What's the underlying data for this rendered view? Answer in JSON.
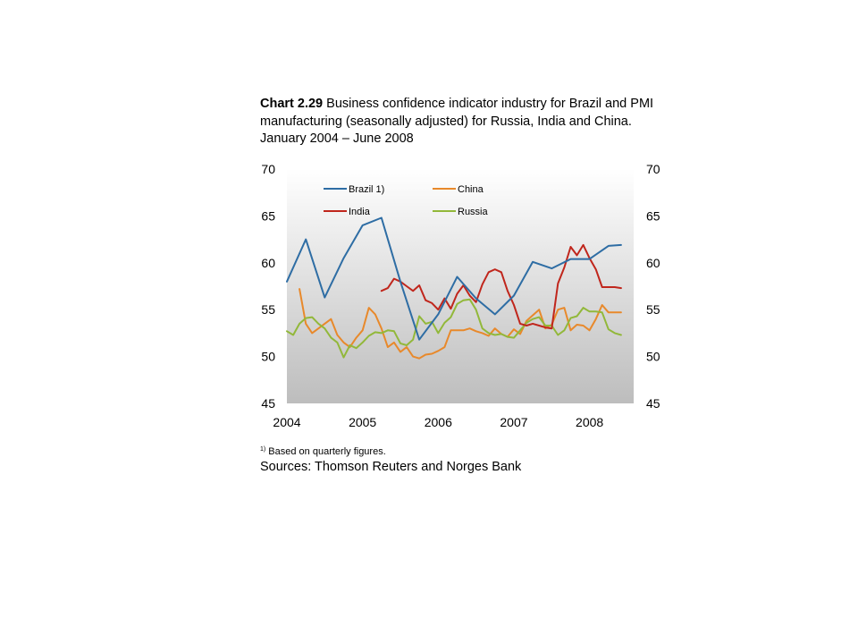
{
  "header": {
    "chart_number": "Chart 2.29",
    "title": "Business confidence indicator industry for Brazil and PMI manufacturing (seasonally adjusted) for Russia, India and China. January 2004 – June 2008"
  },
  "footnote": {
    "marker": "1)",
    "text": "Based on quarterly figures."
  },
  "sources": "Sources: Thomson Reuters and Norges Bank",
  "chart_data": {
    "type": "line",
    "title": "",
    "xlabel": "",
    "ylabel": "",
    "x_ticks": [
      "2004",
      "2005",
      "2006",
      "2007",
      "2008"
    ],
    "ylim": [
      45,
      70
    ],
    "y_ticks": [
      45,
      50,
      55,
      60,
      65,
      70
    ],
    "y_ticks_right": [
      45,
      50,
      55,
      60,
      65,
      70
    ],
    "legend_position": "top-left",
    "background": "vertical gradient from white to grey",
    "series": [
      {
        "name": "Brazil 1)",
        "color": "#2e6da4",
        "x": [
          "2004-01",
          "2004-04",
          "2004-07",
          "2004-10",
          "2005-01",
          "2005-04",
          "2005-07",
          "2005-10",
          "2006-01",
          "2006-04",
          "2006-07",
          "2006-10",
          "2007-01",
          "2007-04",
          "2007-07",
          "2007-10",
          "2008-01",
          "2008-04",
          "2008-06"
        ],
        "values": [
          58.0,
          62.5,
          56.3,
          60.5,
          64.0,
          64.8,
          58.0,
          51.8,
          54.5,
          58.5,
          56.2,
          54.5,
          56.5,
          60.1,
          59.4,
          60.4,
          60.4,
          61.8,
          61.9
        ]
      },
      {
        "name": "China",
        "color": "#e8892b",
        "x": [
          "2004-03",
          "2004-04",
          "2004-05",
          "2004-06",
          "2004-07",
          "2004-08",
          "2004-09",
          "2004-10",
          "2004-11",
          "2004-12",
          "2005-01",
          "2005-02",
          "2005-03",
          "2005-04",
          "2005-05",
          "2005-06",
          "2005-07",
          "2005-08",
          "2005-09",
          "2005-10",
          "2005-11",
          "2005-12",
          "2006-01",
          "2006-02",
          "2006-03",
          "2006-04",
          "2006-05",
          "2006-06",
          "2006-07",
          "2006-08",
          "2006-09",
          "2006-10",
          "2006-11",
          "2006-12",
          "2007-01",
          "2007-02",
          "2007-03",
          "2007-04",
          "2007-05",
          "2007-06",
          "2007-07",
          "2007-08",
          "2007-09",
          "2007-10",
          "2007-11",
          "2007-12",
          "2008-01",
          "2008-02",
          "2008-03",
          "2008-04",
          "2008-05",
          "2008-06"
        ],
        "values": [
          57.2,
          53.5,
          52.5,
          53.0,
          53.5,
          54.0,
          52.3,
          51.5,
          51.0,
          52.0,
          52.8,
          55.2,
          54.5,
          53.0,
          51.0,
          51.5,
          50.5,
          51.0,
          50.0,
          49.8,
          50.2,
          50.3,
          50.6,
          51.0,
          52.8,
          52.8,
          52.8,
          53.0,
          52.7,
          52.5,
          52.2,
          53.0,
          52.4,
          52.1,
          52.9,
          52.4,
          53.8,
          54.4,
          55.0,
          53.0,
          53.4,
          55.0,
          55.2,
          52.8,
          53.4,
          53.3,
          52.8,
          54.0,
          55.5,
          54.7,
          54.7,
          54.7
        ],
        "note": "x positions approximate; values read from chart"
      },
      {
        "name": "India",
        "color": "#c0261c",
        "x": [
          "2005-04",
          "2005-05",
          "2005-06",
          "2005-07",
          "2005-08",
          "2005-09",
          "2005-10",
          "2005-11",
          "2005-12",
          "2006-01",
          "2006-02",
          "2006-03",
          "2006-04",
          "2006-05",
          "2006-06",
          "2006-07",
          "2006-08",
          "2006-09",
          "2006-10",
          "2006-11",
          "2006-12",
          "2007-01",
          "2007-02",
          "2007-03",
          "2007-04",
          "2007-05",
          "2007-06",
          "2007-07",
          "2007-08",
          "2007-09",
          "2007-10",
          "2007-11",
          "2007-12",
          "2008-01",
          "2008-02",
          "2008-03",
          "2008-04",
          "2008-05",
          "2008-06"
        ],
        "values": [
          57.0,
          57.3,
          58.3,
          58.0,
          57.5,
          57.0,
          57.6,
          56.0,
          55.7,
          55.0,
          56.2,
          55.1,
          56.7,
          57.6,
          56.5,
          55.8,
          57.7,
          59.0,
          59.3,
          59.0,
          57.0,
          55.5,
          53.5,
          53.3,
          53.5,
          53.3,
          53.1,
          53.0,
          57.8,
          59.5,
          61.7,
          60.8,
          61.9,
          60.5,
          59.3,
          57.4,
          57.4,
          57.4,
          57.3
        ]
      },
      {
        "name": "Russia",
        "color": "#92b83a",
        "x": [
          "2004-01",
          "2004-02",
          "2004-03",
          "2004-04",
          "2004-05",
          "2004-06",
          "2004-07",
          "2004-08",
          "2004-09",
          "2004-10",
          "2004-11",
          "2004-12",
          "2005-01",
          "2005-02",
          "2005-03",
          "2005-04",
          "2005-05",
          "2005-06",
          "2005-07",
          "2005-08",
          "2005-09",
          "2005-10",
          "2005-11",
          "2005-12",
          "2006-01",
          "2006-02",
          "2006-03",
          "2006-04",
          "2006-05",
          "2006-06",
          "2006-07",
          "2006-08",
          "2006-09",
          "2006-10",
          "2006-11",
          "2006-12",
          "2007-01",
          "2007-02",
          "2007-03",
          "2007-04",
          "2007-05",
          "2007-06",
          "2007-07",
          "2007-08",
          "2007-09",
          "2007-10",
          "2007-11",
          "2007-12",
          "2008-01",
          "2008-02",
          "2008-03",
          "2008-04",
          "2008-05",
          "2008-06"
        ],
        "values": [
          52.7,
          52.3,
          53.5,
          54.1,
          54.2,
          53.5,
          53.0,
          52.0,
          51.5,
          49.9,
          51.2,
          50.9,
          51.5,
          52.2,
          52.6,
          52.5,
          52.8,
          52.7,
          51.4,
          51.2,
          51.8,
          54.3,
          53.5,
          53.7,
          52.5,
          53.6,
          54.2,
          55.6,
          56.0,
          56.1,
          55.0,
          53.0,
          52.5,
          52.3,
          52.4,
          52.1,
          52.0,
          52.8,
          53.6,
          54.0,
          54.2,
          53.3,
          53.3,
          52.3,
          52.8,
          54.1,
          54.3,
          55.2,
          54.8,
          54.8,
          54.7,
          52.9,
          52.5,
          52.3
        ]
      }
    ]
  }
}
